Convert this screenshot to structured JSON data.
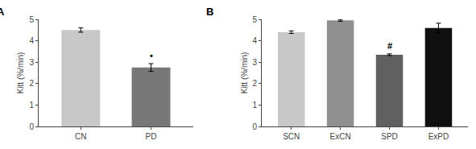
{
  "chart_data": [
    {
      "type": "bar",
      "title": "A",
      "categories": [
        "CN",
        "PD"
      ],
      "values": [
        4.5,
        2.75
      ],
      "errors": [
        0.1,
        0.18
      ],
      "colors": [
        "#c8c8c8",
        "#787878"
      ],
      "y_label": "Kitt (%/min)",
      "ylim": [
        0,
        5
      ],
      "yticks": [
        0,
        1,
        2,
        3,
        4,
        5
      ],
      "grid": false,
      "annotations": [
        {
          "text": "•",
          "category": "PD"
        }
      ]
    },
    {
      "type": "bar",
      "title": "B",
      "categories": [
        "SCN",
        "ExCN",
        "SPD",
        "ExPD"
      ],
      "values": [
        4.4,
        4.95,
        3.35,
        4.6
      ],
      "errors": [
        0.06,
        0.04,
        0.04,
        0.22
      ],
      "colors": [
        "#c8c8c8",
        "#909090",
        "#606060",
        "#101010"
      ],
      "y_label": "Kitt (%/min)",
      "ylim": [
        0,
        5
      ],
      "yticks": [
        0,
        1,
        2,
        3,
        4,
        5
      ],
      "grid": false,
      "annotations": [
        {
          "text": "#",
          "category": "SPD"
        }
      ]
    }
  ]
}
